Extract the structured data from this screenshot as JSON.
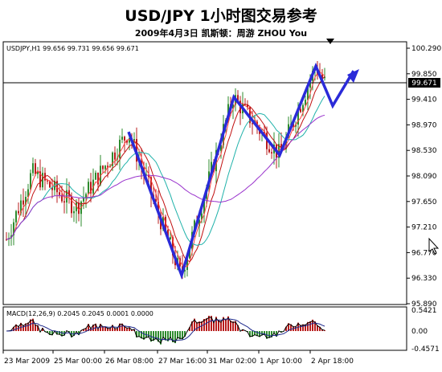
{
  "header": {
    "title": "USD/JPY  1小时图交易参考",
    "subtitle": "2009年4月3日    凯斯顿：周游 ZHOU You"
  },
  "chart_data": {
    "type": "candlestick",
    "symbol_info": "USDJPY,H1  99.656 99.731 99.656 99.671",
    "current_price_label": "99.671",
    "current_price": 99.671,
    "y_ticks": [
      "100.290",
      "99.850",
      "99.410",
      "98.970",
      "98.530",
      "98.090",
      "97.650",
      "97.210",
      "96.770",
      "96.330",
      "95.890"
    ],
    "y_values": [
      100.29,
      99.85,
      99.41,
      98.97,
      98.53,
      98.09,
      97.65,
      97.21,
      96.77,
      96.33,
      95.89
    ],
    "ylim": [
      95.89,
      100.29
    ],
    "x_ticks": [
      "23 Mar 2009",
      "25 Mar 00:00",
      "26 Mar 08:00",
      "27 Mar 16:00",
      "31 Mar 02:00",
      "1 Apr 10:00",
      "2 Apr 18:00"
    ],
    "zigzag_prices": [
      98.85,
      96.38,
      99.45,
      98.45,
      99.98,
      99.3,
      99.9
    ],
    "macd": {
      "label": "MACD(12,26,9) 0.2045 0.2045 0.0001 0.0000",
      "y_ticks": [
        "0.5421",
        "0.00",
        "-0.4571"
      ],
      "ylim": [
        -0.4571,
        0.5421
      ]
    },
    "colors": {
      "zigzag": "#2a2ad8",
      "bull": "#2e8b2e",
      "bear": "#b81c1c",
      "ma_fast": "#ff4040",
      "ma_mid": "#c01010",
      "ma_slow": "#20b2aa",
      "ma_long": "#9932cc"
    }
  }
}
